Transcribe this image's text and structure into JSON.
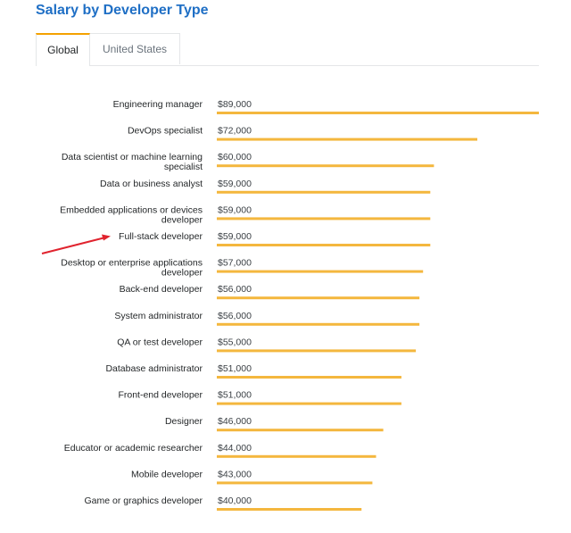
{
  "title": "Salary by Developer Type",
  "tabs": [
    {
      "label": "Global",
      "active": true
    },
    {
      "label": "United States",
      "active": false
    }
  ],
  "colors": {
    "bar": "#f4b73e",
    "title": "#1f6fc5",
    "arrow": "#e0232e",
    "tab_accent": "#f4a100"
  },
  "chart_data": {
    "type": "bar",
    "orientation": "horizontal",
    "categories": [
      "Engineering manager",
      "DevOps specialist",
      "Data scientist or machine learning specialist",
      "Data or business analyst",
      "Embedded applications or devices developer",
      "Full-stack developer",
      "Desktop or enterprise applications developer",
      "Back-end developer",
      "System administrator",
      "QA or test developer",
      "Database administrator",
      "Front-end developer",
      "Designer",
      "Educator or academic researcher",
      "Mobile developer",
      "Game or graphics developer"
    ],
    "category_lines": [
      [
        "Engineering manager"
      ],
      [
        "DevOps specialist"
      ],
      [
        "Data scientist or machine learning",
        "specialist"
      ],
      [
        "Data or business analyst"
      ],
      [
        "Embedded applications or devices",
        "developer"
      ],
      [
        "Full-stack developer"
      ],
      [
        "Desktop or enterprise applications",
        "developer"
      ],
      [
        "Back-end developer"
      ],
      [
        "System administrator"
      ],
      [
        "QA or test developer"
      ],
      [
        "Database administrator"
      ],
      [
        "Front-end developer"
      ],
      [
        "Designer"
      ],
      [
        "Educator or academic researcher"
      ],
      [
        "Mobile developer"
      ],
      [
        "Game or graphics developer"
      ]
    ],
    "values": [
      89000,
      72000,
      60000,
      59000,
      59000,
      59000,
      57000,
      56000,
      56000,
      55000,
      51000,
      51000,
      46000,
      44000,
      43000,
      40000
    ],
    "value_labels": [
      "$89,000",
      "$72,000",
      "$60,000",
      "$59,000",
      "$59,000",
      "$59,000",
      "$57,000",
      "$56,000",
      "$56,000",
      "$55,000",
      "$51,000",
      "$51,000",
      "$46,000",
      "$44,000",
      "$43,000",
      "$40,000"
    ],
    "xlim": [
      0,
      89000
    ],
    "highlighted_category": "Full-stack developer",
    "grid": false,
    "legend": "none"
  }
}
